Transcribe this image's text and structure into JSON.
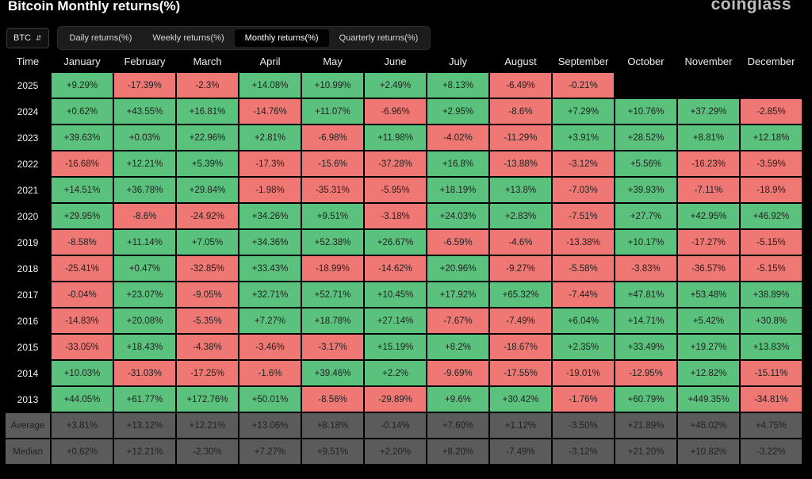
{
  "header": {
    "title": "Bitcoin Monthly returns(%)",
    "brand": "coinglass"
  },
  "controls": {
    "coin": "BTC",
    "tabs": [
      {
        "label": "Daily returns(%)",
        "active": false
      },
      {
        "label": "Weekly returns(%)",
        "active": false
      },
      {
        "label": "Monthly returns(%)",
        "active": true
      },
      {
        "label": "Quarterly returns(%)",
        "active": false
      }
    ]
  },
  "colors": {
    "positive": "#5bc27d",
    "negative": "#ef7874",
    "stat": "#5b5b5b",
    "background": "#000000"
  },
  "table": {
    "columns": [
      "Time",
      "January",
      "February",
      "March",
      "April",
      "May",
      "June",
      "July",
      "August",
      "September",
      "October",
      "November",
      "December"
    ],
    "rows": [
      {
        "year": "2025",
        "values": [
          "+9.29%",
          "-17.39%",
          "-2.3%",
          "+14.08%",
          "+10.99%",
          "+2.49%",
          "+8.13%",
          "-6.49%",
          "-0.21%",
          "",
          "",
          ""
        ]
      },
      {
        "year": "2024",
        "values": [
          "+0.62%",
          "+43.55%",
          "+16.81%",
          "-14.76%",
          "+11.07%",
          "-6.96%",
          "+2.95%",
          "-8.6%",
          "+7.29%",
          "+10.76%",
          "+37.29%",
          "-2.85%"
        ]
      },
      {
        "year": "2023",
        "values": [
          "+39.63%",
          "+0.03%",
          "+22.96%",
          "+2.81%",
          "-6.98%",
          "+11.98%",
          "-4.02%",
          "-11.29%",
          "+3.91%",
          "+28.52%",
          "+8.81%",
          "+12.18%"
        ]
      },
      {
        "year": "2022",
        "values": [
          "-16.68%",
          "+12.21%",
          "+5.39%",
          "-17.3%",
          "-15.6%",
          "-37.28%",
          "+16.8%",
          "-13.88%",
          "-3.12%",
          "+5.56%",
          "-16.23%",
          "-3.59%"
        ]
      },
      {
        "year": "2021",
        "values": [
          "+14.51%",
          "+36.78%",
          "+29.84%",
          "-1.98%",
          "-35.31%",
          "-5.95%",
          "+18.19%",
          "+13.8%",
          "-7.03%",
          "+39.93%",
          "-7.11%",
          "-18.9%"
        ]
      },
      {
        "year": "2020",
        "values": [
          "+29.95%",
          "-8.6%",
          "-24.92%",
          "+34.26%",
          "+9.51%",
          "-3.18%",
          "+24.03%",
          "+2.83%",
          "-7.51%",
          "+27.7%",
          "+42.95%",
          "+46.92%"
        ]
      },
      {
        "year": "2019",
        "values": [
          "-8.58%",
          "+11.14%",
          "+7.05%",
          "+34.36%",
          "+52.38%",
          "+26.67%",
          "-6.59%",
          "-4.6%",
          "-13.38%",
          "+10.17%",
          "-17.27%",
          "-5.15%"
        ]
      },
      {
        "year": "2018",
        "values": [
          "-25.41%",
          "+0.47%",
          "-32.85%",
          "+33.43%",
          "-18.99%",
          "-14.62%",
          "+20.96%",
          "-9.27%",
          "-5.58%",
          "-3.83%",
          "-36.57%",
          "-5.15%"
        ]
      },
      {
        "year": "2017",
        "values": [
          "-0.04%",
          "+23.07%",
          "-9.05%",
          "+32.71%",
          "+52.71%",
          "+10.45%",
          "+17.92%",
          "+65.32%",
          "-7.44%",
          "+47.81%",
          "+53.48%",
          "+38.89%"
        ]
      },
      {
        "year": "2016",
        "values": [
          "-14.83%",
          "+20.08%",
          "-5.35%",
          "+7.27%",
          "+18.78%",
          "+27.14%",
          "-7.67%",
          "-7.49%",
          "+6.04%",
          "+14.71%",
          "+5.42%",
          "+30.8%"
        ]
      },
      {
        "year": "2015",
        "values": [
          "-33.05%",
          "+18.43%",
          "-4.38%",
          "-3.46%",
          "-3.17%",
          "+15.19%",
          "+8.2%",
          "-18.67%",
          "+2.35%",
          "+33.49%",
          "+19.27%",
          "+13.83%"
        ]
      },
      {
        "year": "2014",
        "values": [
          "+10.03%",
          "-31.03%",
          "-17.25%",
          "-1.6%",
          "+39.46%",
          "+2.2%",
          "-9.69%",
          "-17.55%",
          "-19.01%",
          "-12.95%",
          "+12.82%",
          "-15.11%"
        ]
      },
      {
        "year": "2013",
        "values": [
          "+44.05%",
          "+61.77%",
          "+172.76%",
          "+50.01%",
          "-8.56%",
          "-29.89%",
          "+9.6%",
          "+30.42%",
          "-1.76%",
          "+60.79%",
          "+449.35%",
          "-34.81%"
        ]
      }
    ],
    "stats": [
      {
        "label": "Average",
        "values": [
          "+3.81%",
          "+13.12%",
          "+12.21%",
          "+13.06%",
          "+8.18%",
          "-0.14%",
          "+7.60%",
          "+1.12%",
          "-3.50%",
          "+21.89%",
          "+46.02%",
          "+4.75%"
        ]
      },
      {
        "label": "Median",
        "values": [
          "+0.62%",
          "+12.21%",
          "-2.30%",
          "+7.27%",
          "+9.51%",
          "+2.20%",
          "+8.20%",
          "-7.49%",
          "-3.12%",
          "+21.20%",
          "+10.82%",
          "-3.22%"
        ]
      }
    ]
  }
}
